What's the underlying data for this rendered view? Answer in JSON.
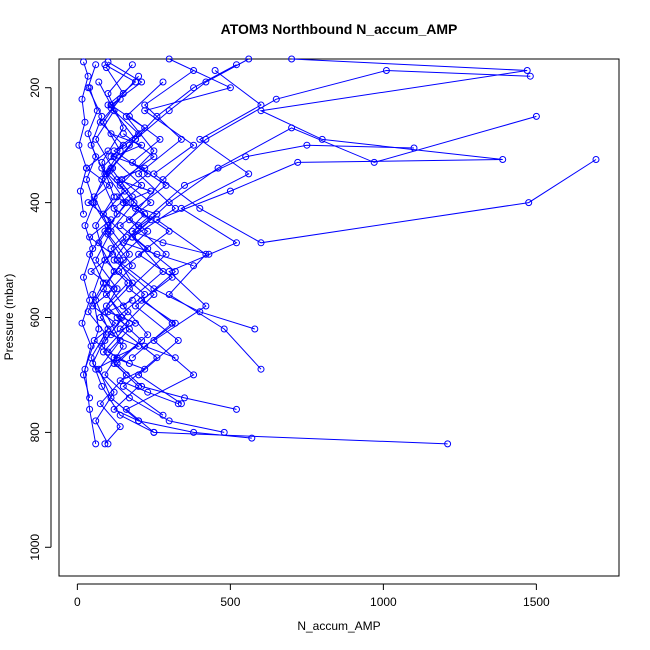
{
  "chart_data": {
    "type": "line",
    "title": "ATOM3 Northbound N_accum_AMP",
    "xlabel": "N_accum_AMP",
    "ylabel": "Pressure (mbar)",
    "xlim": [
      -60,
      1770
    ],
    "ylim": [
      1050,
      150
    ],
    "y_inverted": true,
    "xticks": [
      0,
      500,
      1000,
      1500
    ],
    "yticks": [
      200,
      400,
      600,
      800,
      1000
    ],
    "grid": false,
    "legend": "none",
    "marker": "open-circle",
    "color": "#0000ff",
    "series": [
      {
        "points": [
          [
            60,
            820
          ],
          [
            40,
            760
          ],
          [
            25,
            690
          ],
          [
            70,
            620
          ],
          [
            50,
            560
          ],
          [
            90,
            500
          ],
          [
            60,
            440
          ],
          [
            120,
            390
          ],
          [
            80,
            330
          ],
          [
            150,
            270
          ],
          [
            100,
            210
          ],
          [
            180,
            160
          ]
        ]
      },
      {
        "points": [
          [
            1210,
            820
          ],
          [
            250,
            800
          ],
          [
            160,
            760
          ],
          [
            380,
            700
          ],
          [
            250,
            640
          ],
          [
            420,
            580
          ],
          [
            300,
            520
          ],
          [
            520,
            470
          ],
          [
            340,
            410
          ],
          [
            560,
            350
          ],
          [
            400,
            290
          ],
          [
            600,
            230
          ],
          [
            450,
            170
          ]
        ]
      },
      {
        "points": [
          [
            600,
            690
          ],
          [
            480,
            620
          ],
          [
            300,
            560
          ],
          [
            420,
            490
          ],
          [
            260,
            430
          ],
          [
            500,
            380
          ],
          [
            720,
            330
          ],
          [
            1390,
            325
          ],
          [
            800,
            290
          ],
          [
            600,
            240
          ],
          [
            1470,
            170
          ],
          [
            700,
            150
          ]
        ]
      },
      {
        "points": [
          [
            1695,
            325
          ],
          [
            1475,
            400
          ],
          [
            600,
            470
          ],
          [
            400,
            410
          ],
          [
            250,
            350
          ],
          [
            380,
            300
          ],
          [
            220,
            240
          ],
          [
            500,
            200
          ],
          [
            300,
            150
          ]
        ]
      },
      {
        "points": [
          [
            570,
            810
          ],
          [
            380,
            800
          ],
          [
            200,
            780
          ],
          [
            110,
            740
          ],
          [
            70,
            690
          ],
          [
            140,
            640
          ],
          [
            90,
            590
          ],
          [
            180,
            540
          ],
          [
            110,
            480
          ],
          [
            220,
            420
          ],
          [
            140,
            370
          ],
          [
            250,
            310
          ],
          [
            160,
            250
          ],
          [
            280,
            190
          ]
        ]
      },
      {
        "points": [
          [
            520,
            760
          ],
          [
            350,
            740
          ],
          [
            210,
            720
          ],
          [
            130,
            680
          ],
          [
            230,
            630
          ],
          [
            150,
            580
          ],
          [
            280,
            520
          ],
          [
            180,
            460
          ],
          [
            320,
            410
          ],
          [
            200,
            350
          ],
          [
            340,
            290
          ],
          [
            220,
            230
          ],
          [
            380,
            170
          ]
        ]
      },
      {
        "points": [
          [
            480,
            800
          ],
          [
            300,
            780
          ],
          [
            170,
            740
          ],
          [
            90,
            700
          ],
          [
            150,
            650
          ],
          [
            75,
            600
          ],
          [
            130,
            550
          ],
          [
            60,
            500
          ],
          [
            110,
            450
          ],
          [
            50,
            400
          ],
          [
            90,
            350
          ],
          [
            45,
            300
          ],
          [
            80,
            250
          ],
          [
            35,
            200
          ],
          [
            60,
            160
          ]
        ]
      },
      {
        "points": [
          [
            250,
            800
          ],
          [
            140,
            770
          ],
          [
            80,
            720
          ],
          [
            45,
            670
          ],
          [
            100,
            620
          ],
          [
            60,
            570
          ],
          [
            120,
            520
          ],
          [
            70,
            470
          ],
          [
            130,
            420
          ],
          [
            80,
            360
          ],
          [
            140,
            310
          ],
          [
            85,
            260
          ],
          [
            150,
            210
          ],
          [
            95,
            165
          ]
        ]
      },
      {
        "points": [
          [
            100,
            820
          ],
          [
            60,
            780
          ],
          [
            120,
            730
          ],
          [
            50,
            680
          ],
          [
            95,
            630
          ],
          [
            35,
            590
          ],
          [
            85,
            540
          ],
          [
            40,
            490
          ],
          [
            100,
            440
          ],
          [
            55,
            390
          ],
          [
            115,
            340
          ],
          [
            60,
            290
          ],
          [
            120,
            240
          ],
          [
            70,
            190
          ]
        ]
      },
      {
        "points": [
          [
            90,
            820
          ],
          [
            140,
            790
          ],
          [
            75,
            750
          ],
          [
            160,
            700
          ],
          [
            85,
            660
          ],
          [
            170,
            610
          ],
          [
            95,
            560
          ],
          [
            180,
            510
          ],
          [
            100,
            455
          ],
          [
            185,
            400
          ],
          [
            105,
            345
          ],
          [
            190,
            290
          ],
          [
            110,
            235
          ],
          [
            200,
            180
          ]
        ]
      },
      {
        "points": [
          [
            1100,
            305
          ],
          [
            750,
            300
          ],
          [
            550,
            320
          ],
          [
            350,
            370
          ],
          [
            200,
            440
          ],
          [
            120,
            500
          ],
          [
            250,
            560
          ],
          [
            140,
            620
          ],
          [
            260,
            670
          ],
          [
            150,
            720
          ],
          [
            280,
            770
          ]
        ]
      },
      {
        "points": [
          [
            1500,
            250
          ],
          [
            970,
            330
          ],
          [
            700,
            270
          ],
          [
            460,
            340
          ],
          [
            300,
            400
          ],
          [
            180,
            460
          ],
          [
            320,
            520
          ],
          [
            190,
            580
          ],
          [
            330,
            640
          ],
          [
            200,
            700
          ],
          [
            340,
            750
          ]
        ]
      },
      {
        "points": [
          [
            1480,
            180
          ],
          [
            1010,
            170
          ],
          [
            650,
            220
          ],
          [
            420,
            290
          ],
          [
            280,
            360
          ],
          [
            170,
            430
          ],
          [
            290,
            490
          ],
          [
            170,
            550
          ],
          [
            310,
            610
          ],
          [
            180,
            670
          ]
        ]
      },
      {
        "points": [
          [
            580,
            620
          ],
          [
            400,
            590
          ],
          [
            250,
            550
          ],
          [
            130,
            500
          ],
          [
            230,
            450
          ],
          [
            120,
            410
          ],
          [
            210,
            370
          ],
          [
            110,
            320
          ],
          [
            200,
            280
          ],
          [
            100,
            230
          ],
          [
            190,
            190
          ],
          [
            90,
            160
          ]
        ]
      },
      {
        "points": [
          [
            380,
            510
          ],
          [
            260,
            490
          ],
          [
            150,
            470
          ],
          [
            240,
            430
          ],
          [
            130,
            390
          ],
          [
            230,
            350
          ],
          [
            120,
            310
          ],
          [
            220,
            270
          ],
          [
            110,
            230
          ],
          [
            210,
            190
          ],
          [
            100,
            155
          ]
        ]
      },
      {
        "points": [
          [
            20,
            420
          ],
          [
            10,
            380
          ],
          [
            30,
            340
          ],
          [
            5,
            300
          ],
          [
            25,
            260
          ],
          [
            15,
            220
          ],
          [
            35,
            180
          ],
          [
            20,
            155
          ]
        ]
      },
      {
        "points": [
          [
            40,
            740
          ],
          [
            20,
            700
          ],
          [
            45,
            650
          ],
          [
            15,
            610
          ],
          [
            40,
            570
          ],
          [
            20,
            530
          ],
          [
            50,
            480
          ],
          [
            25,
            440
          ],
          [
            55,
            400
          ],
          [
            30,
            360
          ],
          [
            60,
            320
          ],
          [
            35,
            280
          ],
          [
            65,
            240
          ],
          [
            40,
            200
          ]
        ]
      },
      {
        "points": [
          [
            200,
            780
          ],
          [
            120,
            760
          ],
          [
            200,
            720
          ],
          [
            120,
            680
          ],
          [
            210,
            640
          ],
          [
            130,
            600
          ],
          [
            220,
            560
          ],
          [
            135,
            520
          ],
          [
            230,
            480
          ],
          [
            140,
            440
          ],
          [
            240,
            400
          ],
          [
            145,
            360
          ],
          [
            250,
            320
          ],
          [
            150,
            280
          ]
        ]
      },
      {
        "points": [
          [
            320,
            670
          ],
          [
            220,
            650
          ],
          [
            320,
            610
          ],
          [
            210,
            570
          ],
          [
            310,
            530
          ],
          [
            200,
            490
          ],
          [
            300,
            450
          ],
          [
            190,
            410
          ],
          [
            290,
            370
          ],
          [
            180,
            330
          ],
          [
            270,
            290
          ],
          [
            170,
            250
          ]
        ]
      },
      {
        "points": [
          [
            170,
            680
          ],
          [
            100,
            660
          ],
          [
            170,
            620
          ],
          [
            95,
            580
          ],
          [
            165,
            540
          ],
          [
            90,
            500
          ],
          [
            160,
            460
          ],
          [
            85,
            420
          ],
          [
            155,
            380
          ],
          [
            80,
            340
          ],
          [
            150,
            300
          ],
          [
            75,
            260
          ],
          [
            140,
            220
          ]
        ]
      },
      {
        "points": [
          [
            430,
            490
          ],
          [
            280,
            470
          ],
          [
            180,
            450
          ],
          [
            260,
            420
          ],
          [
            150,
            400
          ],
          [
            240,
            380
          ],
          [
            130,
            360
          ],
          [
            220,
            340
          ],
          [
            120,
            320
          ],
          [
            210,
            300
          ],
          [
            110,
            280
          ]
        ]
      },
      {
        "points": [
          [
            60,
            690
          ],
          [
            130,
            670
          ],
          [
            55,
            640
          ],
          [
            125,
            610
          ],
          [
            50,
            580
          ],
          [
            120,
            550
          ],
          [
            45,
            520
          ],
          [
            115,
            490
          ],
          [
            40,
            460
          ],
          [
            110,
            430
          ],
          [
            35,
            400
          ],
          [
            105,
            370
          ],
          [
            30,
            340
          ],
          [
            100,
            310
          ]
        ]
      },
      {
        "points": [
          [
            560,
            150
          ],
          [
            420,
            190
          ],
          [
            300,
            240
          ],
          [
            190,
            290
          ],
          [
            110,
            340
          ],
          [
            180,
            390
          ],
          [
            100,
            440
          ],
          [
            170,
            490
          ],
          [
            95,
            540
          ],
          [
            165,
            590
          ],
          [
            90,
            640
          ]
        ]
      },
      {
        "points": [
          [
            520,
            160
          ],
          [
            380,
            200
          ],
          [
            260,
            250
          ],
          [
            170,
            300
          ],
          [
            95,
            350
          ],
          [
            160,
            400
          ],
          [
            90,
            450
          ],
          [
            150,
            500
          ],
          [
            85,
            550
          ],
          [
            145,
            600
          ],
          [
            80,
            650
          ]
        ]
      },
      {
        "points": [
          [
            330,
            750
          ],
          [
            230,
            730
          ],
          [
            140,
            710
          ],
          [
            220,
            690
          ],
          [
            120,
            670
          ],
          [
            200,
            650
          ],
          [
            110,
            630
          ],
          [
            190,
            610
          ],
          [
            100,
            590
          ],
          [
            180,
            570
          ]
        ]
      }
    ]
  }
}
